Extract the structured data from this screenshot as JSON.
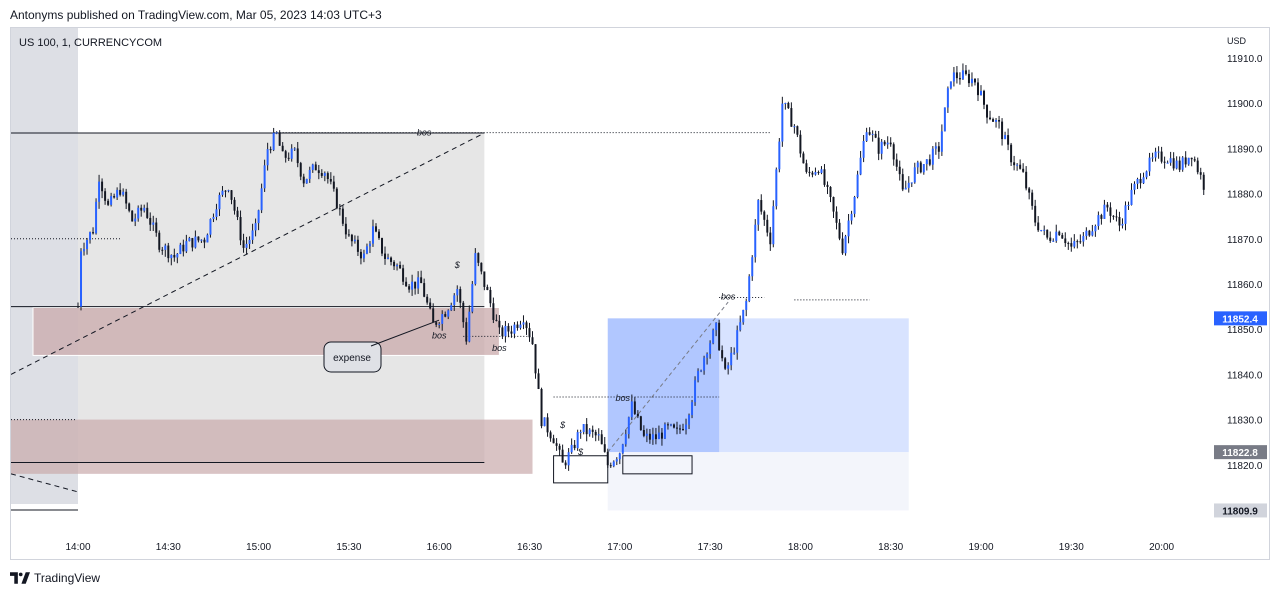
{
  "header": {
    "publisher": "Antonyms published on TradingView.com, Mar 05, 2023 14:03 UTC+3"
  },
  "symbol": {
    "title": "US 100, 1, CURRENCYCOM"
  },
  "currency": "USD",
  "footer": {
    "brand": "TradingView",
    "logo_icon": "tradingview-logo-icon"
  },
  "colors": {
    "up": "#131722",
    "down": "#131722",
    "pink_zone": "#c89b9e",
    "blue_zone": "#2962ff",
    "gray_zone": "#b2b5be"
  },
  "chart_data": {
    "type": "candlestick",
    "x": [
      "14:00",
      "14:30",
      "15:00",
      "15:30",
      "16:00",
      "16:30",
      "17:00",
      "17:30",
      "18:00",
      "18:30",
      "19:00",
      "19:30",
      "20:00"
    ],
    "y_ticks": [
      11910,
      11900,
      11890,
      11880,
      11870,
      11860,
      11850,
      11840,
      11830,
      11820
    ],
    "y_range": [
      11804,
      11916
    ],
    "last_price": 11852.4,
    "price_labels": [
      {
        "value": 11852.4,
        "text": "11852.4",
        "style": "blue"
      },
      {
        "value": 11822.8,
        "text": "11822.8",
        "style": "gray"
      },
      {
        "value": 11809.9,
        "text": "11809.9",
        "style": "light"
      }
    ],
    "annotations": [
      {
        "text": "bos",
        "time": "15:55",
        "price": 11893.5
      },
      {
        "text": "bos",
        "time": "16:20",
        "price": 11845.8
      },
      {
        "text": "bos",
        "time": "17:36",
        "price": 11857.2
      },
      {
        "text": "bos",
        "time": "17:01",
        "price": 11834.8
      },
      {
        "text": "bos",
        "time": "16:00",
        "price": 11848.6
      },
      {
        "text": "expense",
        "time": "14:40",
        "price": 11845
      },
      {
        "text": "$",
        "time": "16:41",
        "price": 11828.8
      },
      {
        "text": "$",
        "time": "16:47",
        "price": 11822.8
      },
      {
        "text": "$",
        "time": "16:06",
        "price": 11864.2
      }
    ],
    "path_keypoints": [
      [
        "14:00",
        11855
      ],
      [
        "14:01",
        11868
      ],
      [
        "14:05",
        11872
      ],
      [
        "14:07",
        11884
      ],
      [
        "14:10",
        11877
      ],
      [
        "14:14",
        11881
      ],
      [
        "14:18",
        11874
      ],
      [
        "14:22",
        11877
      ],
      [
        "14:27",
        11869
      ],
      [
        "14:32",
        11866
      ],
      [
        "14:36",
        11869
      ],
      [
        "14:42",
        11870
      ],
      [
        "14:46",
        11878
      ],
      [
        "14:50",
        11882
      ],
      [
        "14:55",
        11868
      ],
      [
        "14:59",
        11872
      ],
      [
        "15:03",
        11890
      ],
      [
        "15:06",
        11893
      ],
      [
        "15:08",
        11888
      ],
      [
        "15:12",
        11889
      ],
      [
        "15:15",
        11883
      ],
      [
        "15:19",
        11886
      ],
      [
        "15:22",
        11885
      ],
      [
        "15:26",
        11878
      ],
      [
        "15:30",
        11870
      ],
      [
        "15:35",
        11866
      ],
      [
        "15:38",
        11872
      ],
      [
        "15:42",
        11866
      ],
      [
        "15:46",
        11864
      ],
      [
        "15:50",
        11860
      ],
      [
        "15:54",
        11860
      ],
      [
        "15:58",
        11851
      ],
      [
        "16:02",
        11854
      ],
      [
        "16:06",
        11859
      ],
      [
        "16:09",
        11848
      ],
      [
        "16:12",
        11866
      ],
      [
        "16:16",
        11858
      ],
      [
        "16:20",
        11849
      ],
      [
        "16:24",
        11850
      ],
      [
        "16:28",
        11853
      ],
      [
        "16:31",
        11847
      ],
      [
        "16:34",
        11830
      ],
      [
        "16:38",
        11826
      ],
      [
        "16:41",
        11820
      ],
      [
        "16:44",
        11823
      ],
      [
        "16:47",
        11828
      ],
      [
        "16:50",
        11827
      ],
      [
        "16:53",
        11826
      ],
      [
        "16:56",
        11820
      ],
      [
        "17:00",
        11823
      ],
      [
        "17:04",
        11833
      ],
      [
        "17:08",
        11826
      ],
      [
        "17:12",
        11826
      ],
      [
        "17:16",
        11828
      ],
      [
        "17:19",
        11827
      ],
      [
        "17:22",
        11830
      ],
      [
        "17:26",
        11840
      ],
      [
        "17:29",
        11846
      ],
      [
        "17:32",
        11850
      ],
      [
        "17:35",
        11840
      ],
      [
        "17:38",
        11846
      ],
      [
        "17:42",
        11856
      ],
      [
        "17:46",
        11878
      ],
      [
        "17:50",
        11870
      ],
      [
        "17:54",
        11900
      ],
      [
        "17:58",
        11895
      ],
      [
        "18:02",
        11884
      ],
      [
        "18:06",
        11886
      ],
      [
        "18:10",
        11878
      ],
      [
        "18:14",
        11868
      ],
      [
        "18:18",
        11880
      ],
      [
        "18:22",
        11895
      ],
      [
        "18:26",
        11890
      ],
      [
        "18:30",
        11892
      ],
      [
        "18:34",
        11880
      ],
      [
        "18:38",
        11885
      ],
      [
        "18:42",
        11887
      ],
      [
        "18:46",
        11890
      ],
      [
        "18:50",
        11906
      ],
      [
        "18:54",
        11906
      ],
      [
        "18:58",
        11905
      ],
      [
        "19:02",
        11898
      ],
      [
        "19:06",
        11895
      ],
      [
        "19:10",
        11888
      ],
      [
        "19:14",
        11884
      ],
      [
        "19:18",
        11874
      ],
      [
        "19:22",
        11870
      ],
      [
        "19:26",
        11872
      ],
      [
        "19:30",
        11868
      ],
      [
        "19:34",
        11870
      ],
      [
        "19:38",
        11874
      ],
      [
        "19:42",
        11877
      ],
      [
        "19:46",
        11873
      ],
      [
        "19:50",
        11880
      ],
      [
        "19:54",
        11885
      ],
      [
        "19:58",
        11888
      ],
      [
        "20:02",
        11888
      ],
      [
        "20:06",
        11886
      ],
      [
        "20:10",
        11889
      ],
      [
        "20:14",
        11882
      ]
    ]
  }
}
